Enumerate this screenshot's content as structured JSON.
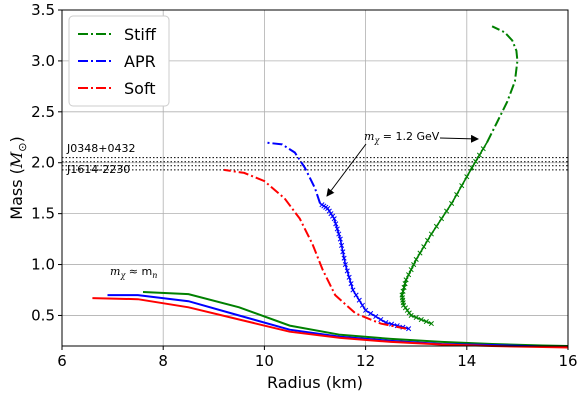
{
  "chart_data": {
    "type": "line",
    "xlabel": "Radius (km)",
    "ylabel": "Mass (",
    "ylabel_symbol": "M",
    "ylabel_sub": "⊙",
    "ylabel_close": ")",
    "xlim": [
      6,
      16
    ],
    "ylim": [
      0.2,
      3.5
    ],
    "xticks": [
      6,
      8,
      10,
      12,
      14,
      16
    ],
    "yticks": [
      0.5,
      1.0,
      1.5,
      2.0,
      2.5,
      3.0,
      3.5
    ],
    "xtick_labels": [
      "6",
      "8",
      "10",
      "12",
      "14",
      "16"
    ],
    "ytick_labels": [
      "0.5",
      "1.0",
      "1.5",
      "2.0",
      "2.5",
      "3.0",
      "3.5"
    ],
    "grid": true,
    "legend_position": "top-left",
    "series": [
      {
        "name": "Stiff",
        "color": "#008000",
        "low_branch": {
          "x": [
            7.6,
            8.5,
            9.5,
            10.5,
            11.5,
            12.5,
            13.5,
            14.5,
            15.5,
            16.0
          ],
          "y": [
            0.73,
            0.71,
            0.58,
            0.4,
            0.31,
            0.27,
            0.24,
            0.22,
            0.205,
            0.2
          ]
        },
        "dm_branch": {
          "x": [
            13.3,
            12.9,
            12.75,
            12.72,
            12.8,
            13.0,
            13.3,
            13.7,
            14.1,
            14.4
          ],
          "y": [
            0.42,
            0.5,
            0.6,
            0.7,
            0.85,
            1.05,
            1.3,
            1.6,
            1.95,
            2.2
          ]
        },
        "dashdot_branch": {
          "x": [
            14.4,
            14.6,
            14.8,
            14.95,
            15.0,
            14.98,
            14.9,
            14.75,
            14.5
          ],
          "y": [
            2.2,
            2.4,
            2.6,
            2.8,
            3.0,
            3.1,
            3.2,
            3.28,
            3.34
          ]
        }
      },
      {
        "name": "APR",
        "color": "#0000ff",
        "low_branch": {
          "x": [
            6.9,
            7.5,
            8.5,
            9.5,
            10.5,
            11.5,
            12.5,
            13.5,
            14.5,
            15.5,
            16.0
          ],
          "y": [
            0.7,
            0.7,
            0.64,
            0.5,
            0.36,
            0.29,
            0.25,
            0.22,
            0.21,
            0.195,
            0.19
          ]
        },
        "dm_branch": {
          "x": [
            12.85,
            12.4,
            12.0,
            11.75,
            11.6,
            11.5,
            11.38,
            11.25,
            11.1
          ],
          "y": [
            0.37,
            0.43,
            0.55,
            0.75,
            1.0,
            1.25,
            1.45,
            1.55,
            1.6
          ]
        },
        "dashdot_branch": {
          "x": [
            11.1,
            11.0,
            10.8,
            10.6,
            10.35,
            10.0
          ],
          "y": [
            1.6,
            1.75,
            1.95,
            2.1,
            2.18,
            2.2
          ]
        }
      },
      {
        "name": "Soft",
        "color": "#ff0000",
        "low_branch": {
          "x": [
            6.6,
            7.5,
            8.5,
            9.5,
            10.5,
            11.5,
            12.5,
            13.5,
            14.5,
            15.5,
            16.0
          ],
          "y": [
            0.67,
            0.66,
            0.58,
            0.46,
            0.34,
            0.28,
            0.24,
            0.215,
            0.2,
            0.19,
            0.185
          ]
        },
        "dashdot_branch": {
          "x": [
            12.8,
            12.3,
            11.8,
            11.4,
            11.15,
            10.95,
            10.7,
            10.4,
            10.0,
            9.6,
            9.2
          ],
          "y": [
            0.37,
            0.42,
            0.52,
            0.7,
            0.95,
            1.2,
            1.45,
            1.65,
            1.82,
            1.9,
            1.93
          ]
        }
      }
    ],
    "reference_lines": [
      {
        "label": "J0348+0432",
        "y_low": 1.97,
        "y_high": 2.05
      },
      {
        "label": "J1614-2230",
        "y_low": 1.93,
        "y_high": 2.01
      }
    ],
    "annotations": [
      {
        "text_prefix": "m",
        "text_sub": "χ",
        "text_suffix": " = 1.2 GeV"
      },
      {
        "text_prefix": "m",
        "text_sub": "χ",
        "text_mid": " ≈ m",
        "text_sub2": "n"
      }
    ]
  }
}
